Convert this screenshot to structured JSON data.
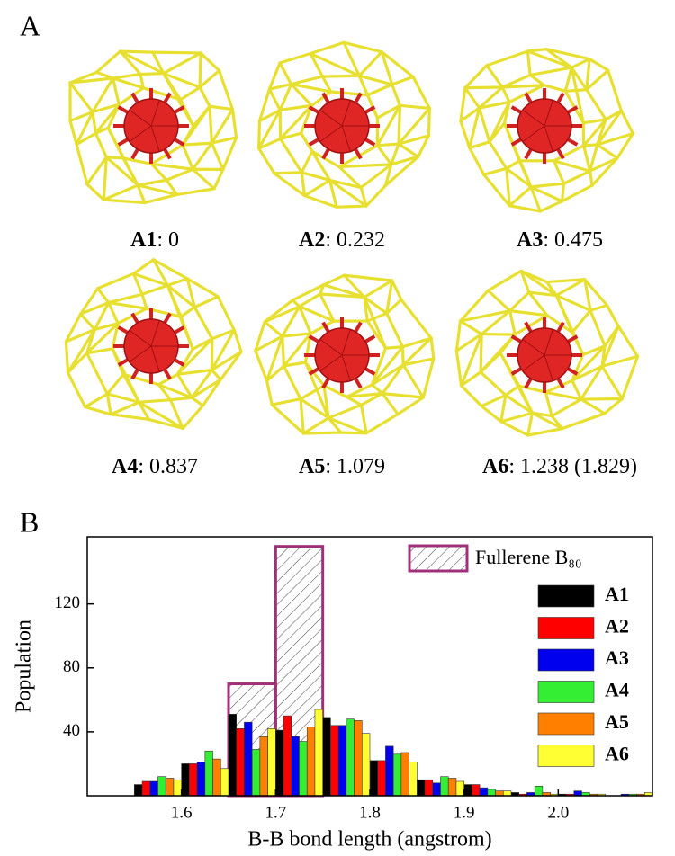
{
  "panel_a": {
    "label": "A",
    "structures": [
      {
        "name": "A1",
        "text": ": 0"
      },
      {
        "name": "A2",
        "text": ": 0.232"
      },
      {
        "name": "A3",
        "text": ": 0.475"
      },
      {
        "name": "A4",
        "text": ": 0.837"
      },
      {
        "name": "A5",
        "text": ": 1.079"
      },
      {
        "name": "A6",
        "text": ": 1.238 (1.829)"
      }
    ]
  },
  "chart_data": {
    "type": "histogram",
    "panel_label": "B",
    "x_label": "B-B bond length (angstrom)",
    "y_label": "Population",
    "bins": [
      1.55,
      1.6,
      1.65,
      1.7,
      1.75,
      1.8,
      1.85,
      1.9,
      1.95,
      2.0,
      2.05,
      2.1
    ],
    "series": [
      {
        "name": "A1",
        "color": "#000000",
        "values": [
          7,
          20,
          51,
          41,
          49,
          22,
          10,
          7,
          2,
          1,
          0
        ]
      },
      {
        "name": "A2",
        "color": "#ff0000",
        "values": [
          9,
          20,
          42,
          50,
          44,
          22,
          10,
          7,
          1,
          1,
          0
        ]
      },
      {
        "name": "A3",
        "color": "#0000ee",
        "values": [
          9,
          21,
          46,
          37,
          44,
          31,
          8,
          5,
          2,
          3,
          1
        ]
      },
      {
        "name": "A4",
        "color": "#33ee33",
        "values": [
          12,
          28,
          29,
          34,
          48,
          26,
          12,
          4,
          6,
          2,
          1
        ]
      },
      {
        "name": "A5",
        "color": "#ff8000",
        "values": [
          11,
          23,
          37,
          43,
          47,
          27,
          11,
          3,
          2,
          1,
          1
        ]
      },
      {
        "name": "A6",
        "color": "#ffff33",
        "values": [
          10,
          17,
          42,
          54,
          39,
          21,
          9,
          3,
          1,
          1,
          2
        ]
      }
    ],
    "reference": {
      "name": "Fullerene B₈₀",
      "color": "#a0307a",
      "bins": [
        1.65,
        1.7,
        1.75
      ],
      "values": [
        70,
        156
      ]
    },
    "xlim": [
      1.5,
      2.1
    ],
    "ylim": [
      0,
      162
    ],
    "xticks": [
      1.6,
      1.7,
      1.8,
      1.9,
      {
        "value": 2,
        "label": "2.0"
      }
    ],
    "yticks": [
      40,
      80,
      120
    ],
    "legend": "upper right"
  }
}
